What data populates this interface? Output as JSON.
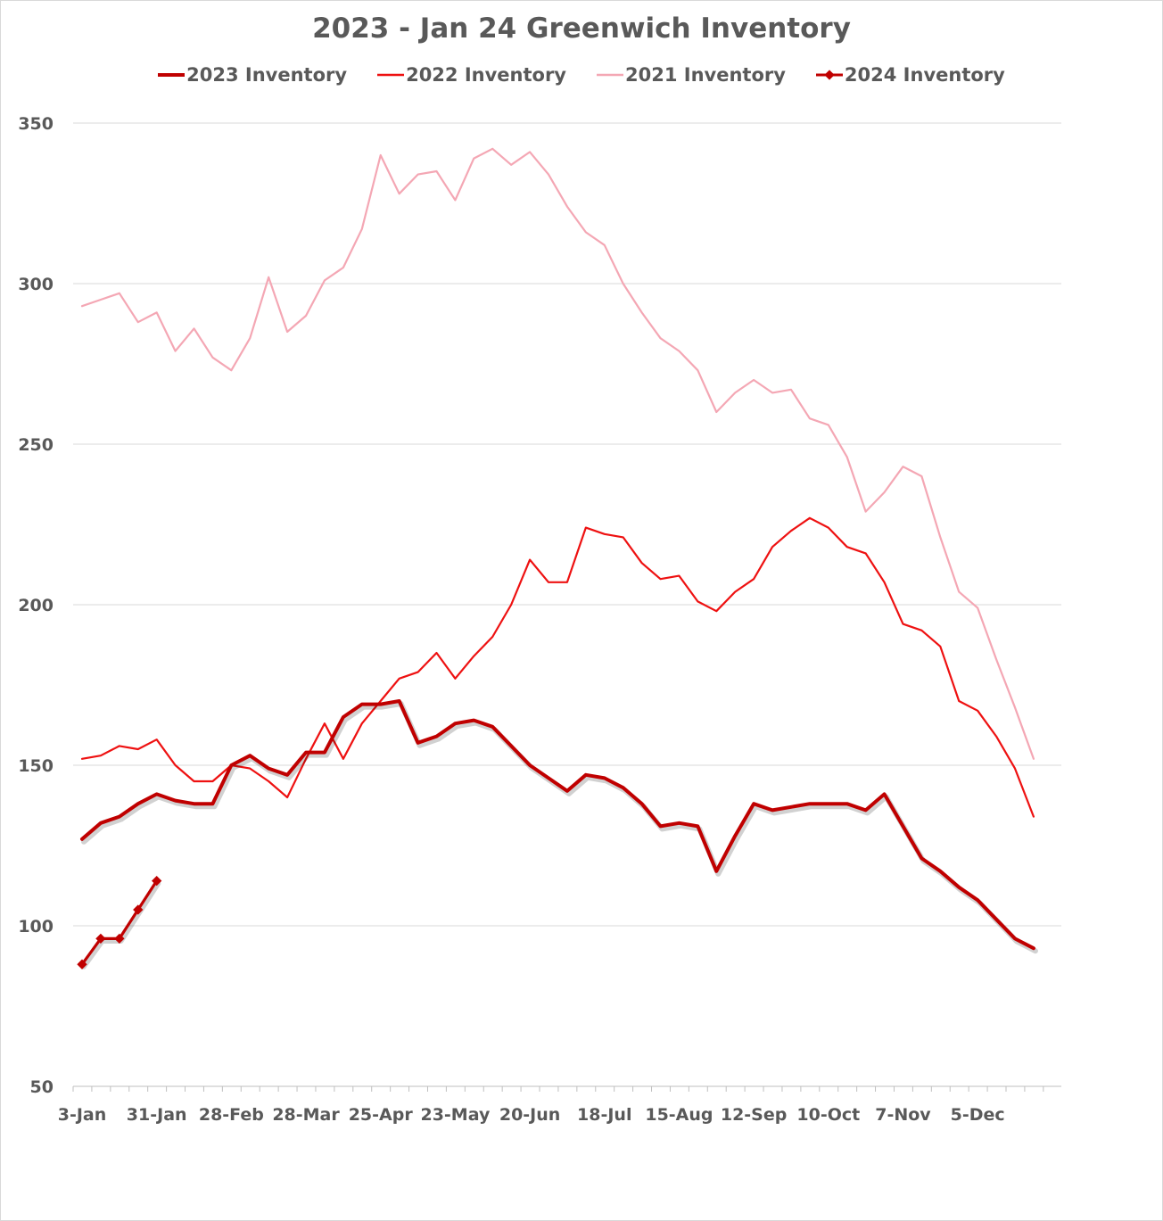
{
  "title": "2023 - Jan 24 Greenwich Inventory",
  "colors": {
    "s2023": "#c00000",
    "s2022": "#ee1111",
    "s2021": "#f4a7b4",
    "s2024": "#c00000",
    "grid": "#d9d9d9",
    "axis": "#bfbfbf",
    "text": "#595959"
  },
  "chart_data": {
    "type": "line",
    "title": "2023 - Jan 24 Greenwich Inventory",
    "xlabel": "",
    "ylabel": "",
    "ylim": [
      50,
      350
    ],
    "yticks": [
      50,
      100,
      150,
      200,
      250,
      300,
      350
    ],
    "xticks": [
      "3-Jan",
      "31-Jan",
      "28-Feb",
      "28-Mar",
      "25-Apr",
      "23-May",
      "20-Jun",
      "18-Jul",
      "15-Aug",
      "12-Sep",
      "10-Oct",
      "7-Nov",
      "5-Dec"
    ],
    "grid": true,
    "legend": "top",
    "series": [
      {
        "name": "2023 Inventory",
        "values": [
          127,
          132,
          134,
          138,
          141,
          139,
          138,
          138,
          150,
          153,
          149,
          147,
          154,
          154,
          165,
          169,
          169,
          170,
          157,
          159,
          163,
          164,
          162,
          156,
          150,
          146,
          142,
          147,
          146,
          143,
          138,
          131,
          132,
          131,
          117,
          128,
          138,
          136,
          137,
          138,
          138,
          138,
          136,
          141,
          131,
          121,
          117,
          112,
          108,
          102,
          96,
          93
        ]
      },
      {
        "name": "2022 Inventory",
        "values": [
          152,
          153,
          156,
          155,
          158,
          150,
          145,
          145,
          150,
          149,
          145,
          140,
          152,
          163,
          152,
          163,
          170,
          177,
          179,
          185,
          177,
          184,
          190,
          200,
          214,
          207,
          207,
          224,
          222,
          221,
          213,
          208,
          209,
          201,
          198,
          204,
          208,
          218,
          223,
          227,
          224,
          218,
          216,
          207,
          194,
          192,
          187,
          170,
          167,
          159,
          149,
          134
        ]
      },
      {
        "name": "2021 Inventory",
        "values": [
          293,
          295,
          297,
          288,
          291,
          279,
          286,
          277,
          273,
          283,
          302,
          285,
          290,
          301,
          305,
          317,
          340,
          328,
          334,
          335,
          326,
          339,
          342,
          337,
          341,
          334,
          324,
          316,
          312,
          300,
          291,
          283,
          279,
          273,
          260,
          266,
          270,
          266,
          267,
          258,
          256,
          246,
          229,
          235,
          243,
          240,
          221,
          204,
          199,
          183,
          168,
          152
        ]
      },
      {
        "name": "2024 Inventory",
        "values": [
          88,
          96,
          96,
          105,
          114
        ]
      }
    ]
  }
}
